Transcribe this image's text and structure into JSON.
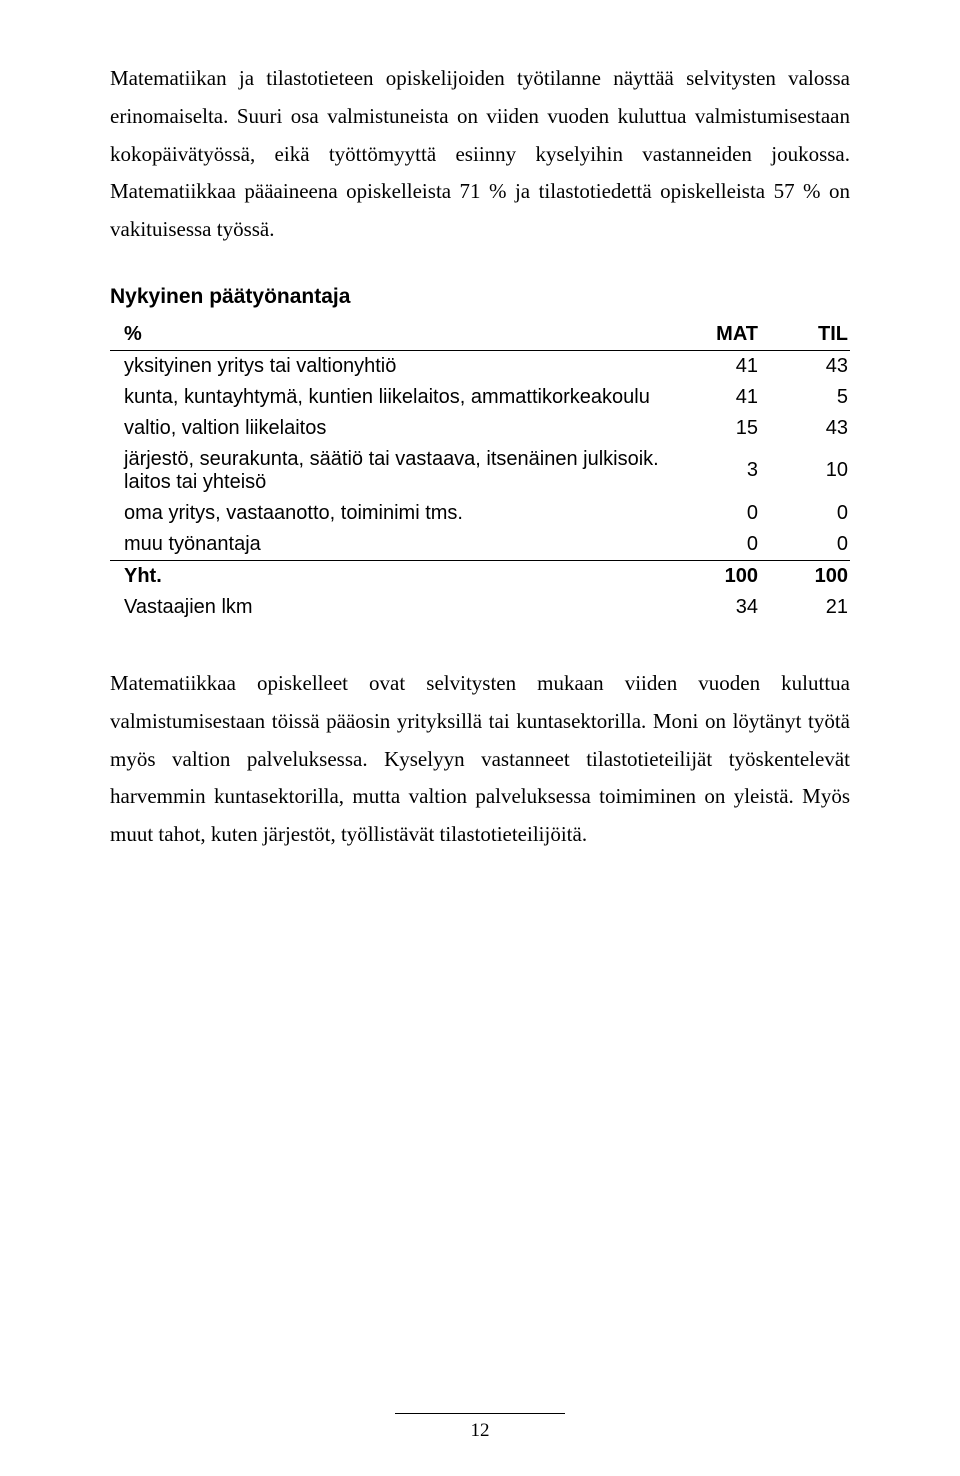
{
  "para1": "Matematiikan ja tilastotieteen opiskelijoiden työtilanne näyttää selvitysten valossa erinomaiselta. Suuri osa valmistuneista on viiden vuoden kuluttua valmistumisestaan kokopäivätyössä, eikä työttömyyttä esiinny kyselyihin vastanneiden joukossa. Matematiikkaa pääaineena opiskelleista 71 % ja tilastotiedettä opiskelleista 57 % on vakituisessa työssä.",
  "table": {
    "title": "Nykyinen päätyönantaja",
    "pct_label": "%",
    "columns": [
      "MAT",
      "TIL"
    ],
    "rows": [
      {
        "label": "yksityinen yritys tai valtionyhtiö",
        "mat": "41",
        "til": "43"
      },
      {
        "label": "kunta, kuntayhtymä, kuntien liikelaitos, ammattikorkeakoulu",
        "mat": "41",
        "til": "5"
      },
      {
        "label": "valtio, valtion liikelaitos",
        "mat": "15",
        "til": "43"
      },
      {
        "label": "järjestö, seurakunta, säätiö tai vastaava, itsenäinen julkisoik. laitos tai yhteisö",
        "mat": "3",
        "til": "10"
      },
      {
        "label": "oma yritys, vastaanotto, toiminimi tms.",
        "mat": "0",
        "til": "0"
      },
      {
        "label": "muu työnantaja",
        "mat": "0",
        "til": "0"
      }
    ],
    "total": {
      "label": "Yht.",
      "mat": "100",
      "til": "100"
    },
    "respondents": {
      "label": "Vastaajien lkm",
      "mat": "34",
      "til": "21"
    }
  },
  "para2": "Matematiikkaa opiskelleet ovat selvitysten mukaan viiden vuoden kuluttua valmistumisestaan töissä pääosin yrityksillä tai kuntasektorilla. Moni on löytänyt työtä myös valtion palveluksessa. Kyselyyn vastanneet tilastotieteilijät työskentelevät harvemmin kuntasektorilla, mutta valtion palveluksessa toimiminen on yleistä. Myös muut tahot, kuten järjestöt, työllistävät tilastotieteilijöitä.",
  "page_number": "12"
}
